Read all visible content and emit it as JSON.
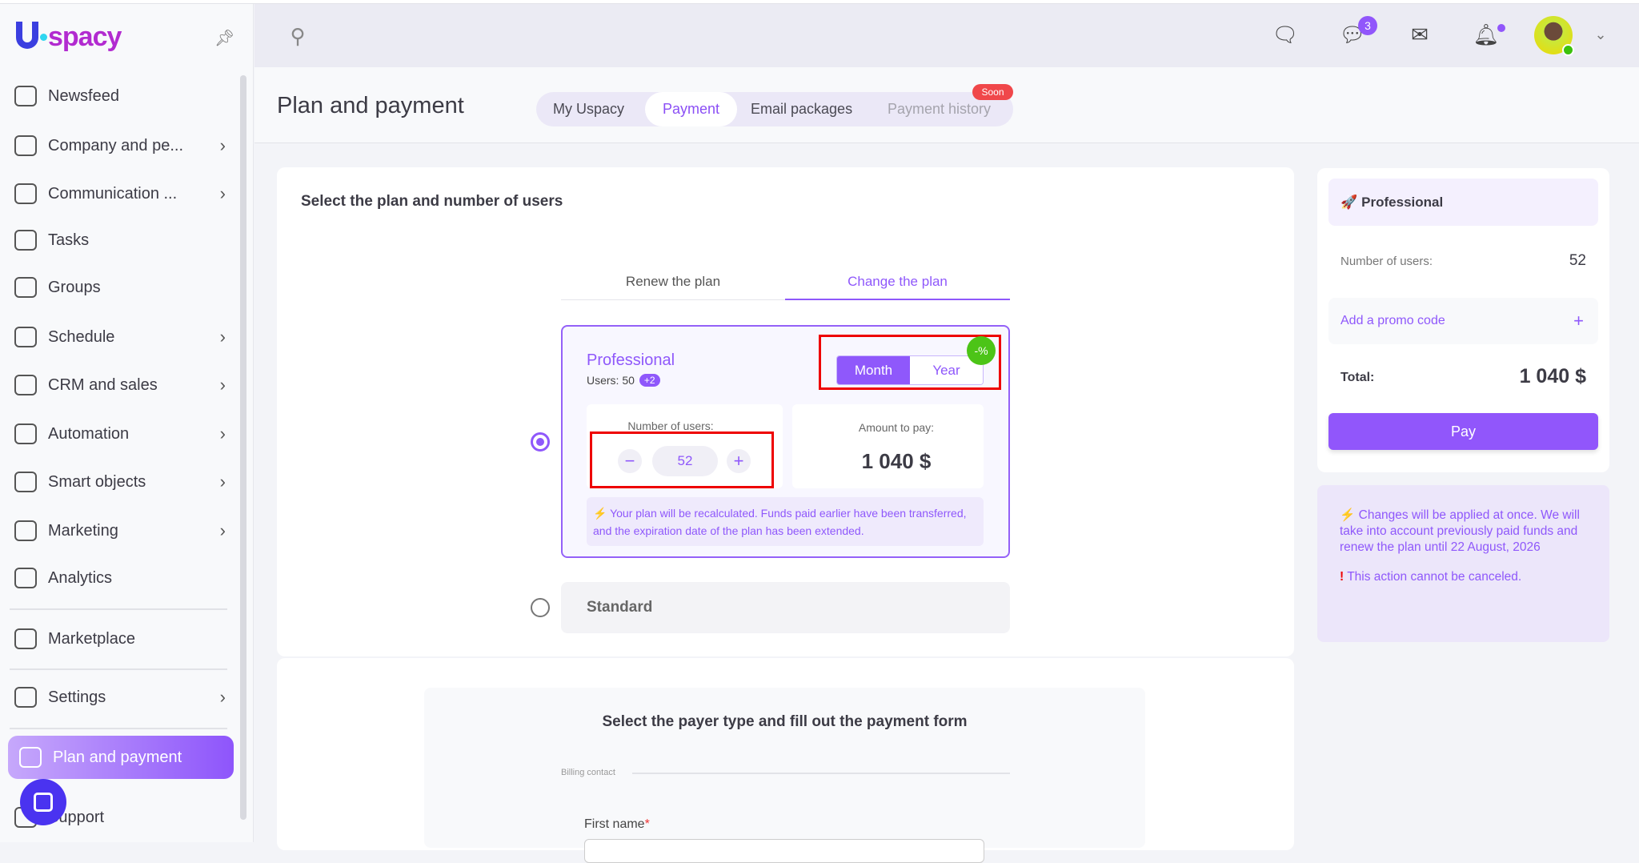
{
  "app": {
    "logo": "Uspacy"
  },
  "sidebar": {
    "items": [
      {
        "label": "Newsfeed",
        "icon": "home-icon",
        "chevron": false
      },
      {
        "label": "Company and pe...",
        "icon": "building-icon",
        "chevron": true
      },
      {
        "label": "Communication ...",
        "icon": "communication-icon",
        "chevron": true
      },
      {
        "label": "Tasks",
        "icon": "check-circle-icon",
        "chevron": false
      },
      {
        "label": "Groups",
        "icon": "users-icon",
        "chevron": false
      },
      {
        "label": "Schedule",
        "icon": "calendar-icon",
        "chevron": true
      },
      {
        "label": "CRM and sales",
        "icon": "database-icon",
        "chevron": true
      },
      {
        "label": "Automation",
        "icon": "lightning-icon",
        "chevron": true
      },
      {
        "label": "Smart objects",
        "icon": "scan-icon",
        "chevron": true
      },
      {
        "label": "Marketing",
        "icon": "megaphone-icon",
        "chevron": true
      },
      {
        "label": "Analytics",
        "icon": "chart-icon",
        "chevron": false
      },
      {
        "label": "Marketplace",
        "icon": "store-icon",
        "chevron": false
      },
      {
        "label": "Settings",
        "icon": "gear-icon",
        "chevron": true
      },
      {
        "label": "Plan and payment",
        "icon": "wallet-icon",
        "chevron": false,
        "active": true
      },
      {
        "label": "Support",
        "icon": "support-icon",
        "chevron": false
      }
    ]
  },
  "topbar": {
    "chat_badge": "3"
  },
  "header": {
    "title": "Plan and payment",
    "tabs": [
      {
        "label": "My Uspacy"
      },
      {
        "label": "Payment",
        "active": true
      },
      {
        "label": "Email packages"
      },
      {
        "label": "Payment history",
        "disabled": true,
        "badge": "Soon"
      }
    ]
  },
  "plan": {
    "title": "Select the plan and number of users",
    "tabs": [
      "Renew the plan",
      "Change the plan"
    ],
    "active_tab": "Change the plan",
    "professional": {
      "name": "Professional",
      "users_label": "Users: 50",
      "users_extra": "+2",
      "period": [
        "Month",
        "Year"
      ],
      "period_selected": "Month",
      "discount_badge": "-%",
      "number_label": "Number of users:",
      "users_value": "52",
      "amount_label": "Amount to pay:",
      "amount": "1 040 $",
      "note": "Your plan will be recalculated. Funds paid earlier have been transferred, and the expiration date of the plan has been extended."
    },
    "standard": {
      "name": "Standard"
    }
  },
  "payer": {
    "title": "Select the payer type and fill out the payment form",
    "section": "Billing contact",
    "first_name_label": "First name",
    "required_mark": "*"
  },
  "summary": {
    "plan": "Professional",
    "users_label": "Number of users:",
    "users_value": "52",
    "promo": "Add a promo code",
    "total_label": "Total:",
    "total": "1 040 $",
    "pay": "Pay",
    "info": "Changes will be applied at once. We will take into account previously paid funds and renew the plan until 22 August, 2026",
    "warning": "This action cannot be canceled."
  },
  "colors": {
    "accent": "#8f58fb",
    "danger": "#ee0000",
    "discount": "#4cc417"
  }
}
